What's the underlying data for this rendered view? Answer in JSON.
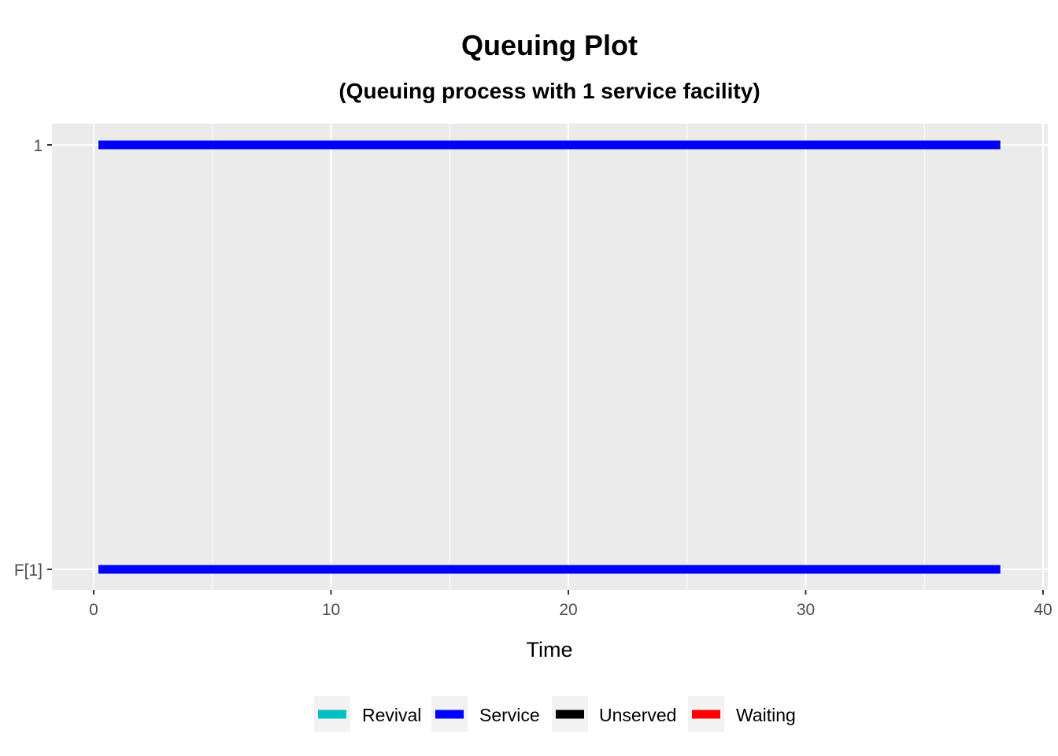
{
  "chart_data": {
    "type": "timeline",
    "title": "Queuing Plot",
    "subtitle": "(Queuing process with 1 service facility)",
    "xlabel": "Time",
    "ylabel": "",
    "xlim": [
      -1.7,
      40
    ],
    "xticks": [
      0,
      10,
      20,
      30,
      40
    ],
    "categories": [
      "F[1]",
      "1"
    ],
    "segments": [
      {
        "category": "1",
        "start": 0.2,
        "end": 38.2,
        "type": "Service"
      },
      {
        "category": "F[1]",
        "start": 0.2,
        "end": 38.2,
        "type": "Service"
      }
    ],
    "legend": [
      {
        "name": "Revival",
        "color": "#00BFC4"
      },
      {
        "name": "Service",
        "color": "#0000FF"
      },
      {
        "name": "Unserved",
        "color": "#000000"
      },
      {
        "name": "Waiting",
        "color": "#FF0000"
      }
    ],
    "legend_position": "bottom",
    "grid": true,
    "panel_background": "#EBEBEB"
  }
}
